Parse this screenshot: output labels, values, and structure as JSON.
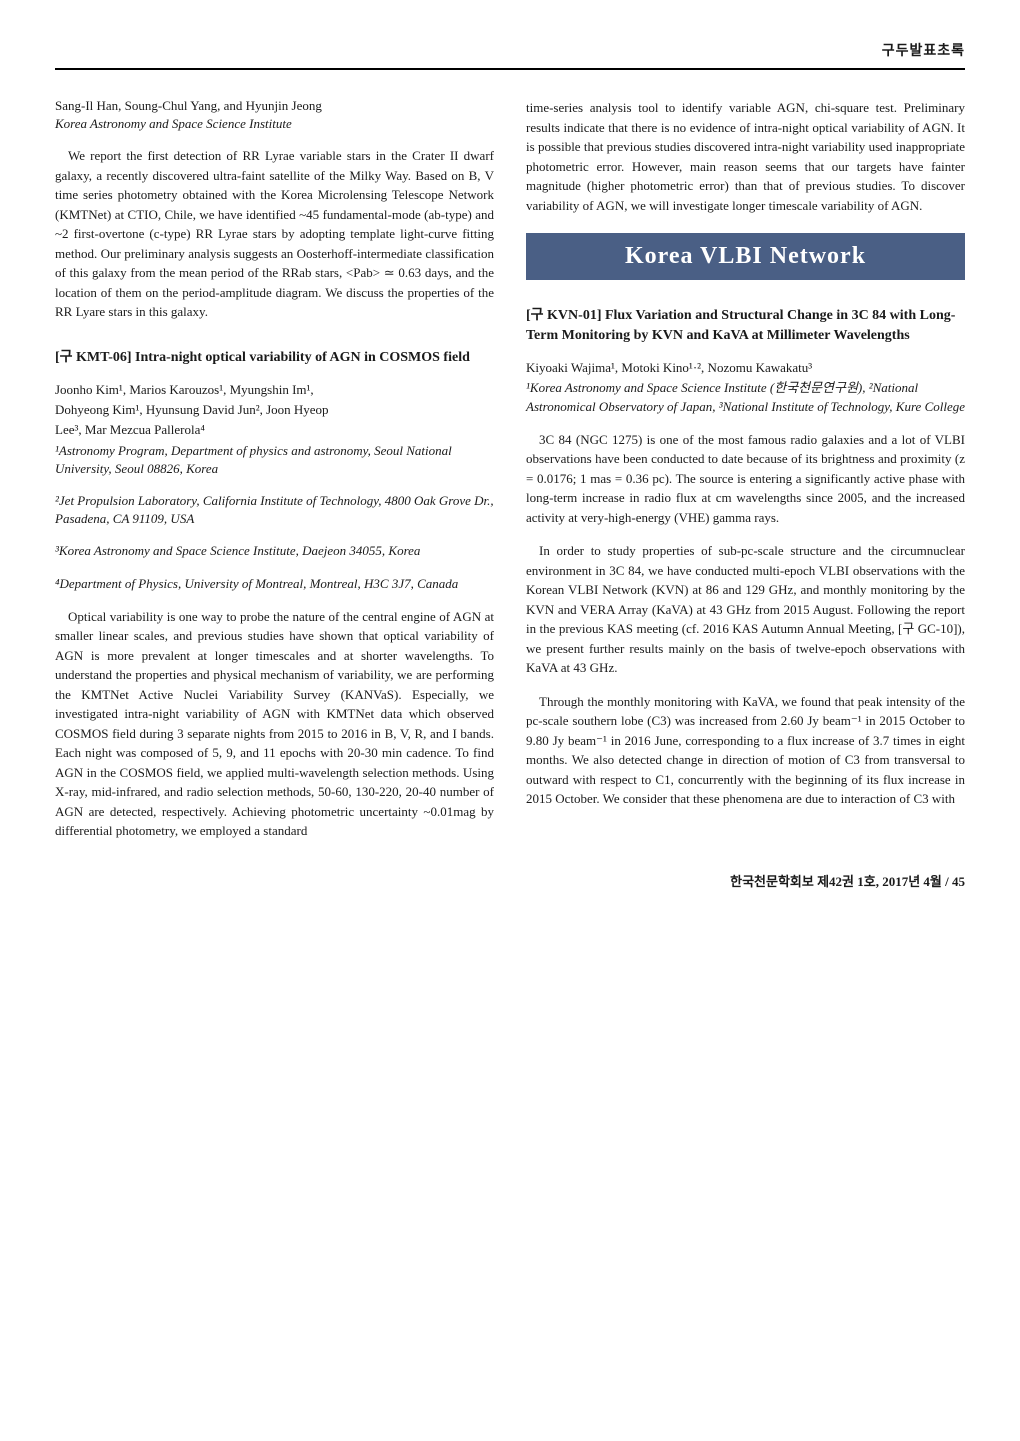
{
  "header": {
    "label": "구두발표초록"
  },
  "left_column": {
    "kmt05": {
      "authors": "Sang-Il Han, Soung-Chul Yang, and Hyunjin Jeong",
      "affiliation": "Korea Astronomy and Space Science Institute",
      "abstract": "We report the first detection of RR Lyrae variable stars in the Crater II dwarf galaxy, a recently discovered ultra-faint satellite of the Milky Way. Based on B, V time series photometry obtained with the Korea Microlensing Telescope Network (KMTNet) at CTIO, Chile, we have identified ~45 fundamental-mode (ab-type) and ~2 first-overtone (c-type) RR Lyrae stars by adopting template light-curve fitting method. Our preliminary analysis suggests an Oosterhoff-intermediate classification of this galaxy from the mean period of the RRab stars, <Pab> ≃ 0.63 days, and the location of them on the period-amplitude diagram. We discuss the properties of the RR Lyare stars in this galaxy."
    },
    "kmt06": {
      "title": "[구 KMT-06] Intra-night optical variability of AGN in COSMOS field",
      "authors_line1": "Joonho Kim¹, Marios Karouzos¹, Myungshin Im¹,",
      "authors_line2": "Dohyeong Kim¹, Hyunsung David Jun², Joon Hyeop",
      "authors_line3": "Lee³, Mar Mezcua Pallerola⁴",
      "affiliation1": "¹Astronomy Program, Department of physics and astronomy, Seoul National University, Seoul 08826, Korea",
      "affiliation2": "²Jet Propulsion Laboratory, California Institute of Technology, 4800 Oak Grove Dr., Pasadena, CA 91109, USA",
      "affiliation3": "³Korea Astronomy and Space Science Institute, Daejeon 34055, Korea",
      "affiliation4": "⁴Department of Physics, University of Montreal, Montreal, H3C 3J7, Canada",
      "abstract": "Optical variability is one way to probe the nature of the central engine of AGN at smaller linear scales, and previous studies have shown that optical variability of AGN is more prevalent at longer timescales and at shorter wavelengths. To understand the properties and physical mechanism of variability, we are performing the KMTNet Active Nuclei Variability Survey (KANVaS). Especially, we investigated intra-night variability of AGN with KMTNet data which observed COSMOS field during 3 separate nights from 2015 to 2016 in B, V, R, and I bands. Each night was composed of 5, 9, and 11 epochs with 20-30 min cadence. To find AGN in the COSMOS field, we applied multi-wavelength selection methods. Using X-ray, mid-infrared, and radio selection methods, 50-60, 130-220, 20-40 number of AGN are detected, respectively. Achieving photometric uncertainty ~0.01mag by differential photometry, we employed a standard"
    }
  },
  "right_column": {
    "kmt06_continued": "time-series analysis tool to identify variable AGN, chi-square test. Preliminary results indicate that there is no evidence of intra-night optical variability of AGN. It is possible that previous studies discovered intra-night variability used inappropriate photometric error. However, main reason seems that our targets have fainter magnitude (higher photometric error) than that of previous studies. To discover variability of AGN, we will investigate longer timescale variability of AGN.",
    "banner_text": "Korea VLBI Network",
    "kvn01": {
      "title": "[구 KVN-01] Flux Variation and Structural Change in 3C 84 with Long-Term Monitoring by KVN and KaVA at Millimeter Wavelengths",
      "authors": "Kiyoaki Wajima¹, Motoki Kino¹·², Nozomu Kawakatu³",
      "affiliation": "¹Korea Astronomy and Space Science Institute (한국천문연구원), ²National Astronomical Observatory of Japan, ³National Institute of Technology, Kure College",
      "para1": "3C 84 (NGC 1275) is one of the most famous radio galaxies and a lot of VLBI observations have been conducted to date because of its brightness and proximity (z = 0.0176; 1 mas = 0.36 pc). The source is entering a significantly active phase with long-term increase in radio flux at cm wavelengths since 2005, and the increased activity at very-high-energy (VHE) gamma rays.",
      "para2": "In order to study properties of sub-pc-scale structure and the circumnuclear environment in 3C 84, we have conducted multi-epoch VLBI observations with the Korean VLBI Network (KVN) at 86 and 129 GHz, and monthly monitoring by the KVN and VERA Array (KaVA) at 43 GHz from 2015 August. Following the report in the previous KAS meeting (cf. 2016 KAS Autumn Annual Meeting, [구 GC-10]), we present further results mainly on the basis of twelve-epoch observations with KaVA at 43 GHz.",
      "para3": "Through the monthly monitoring with KaVA, we found that peak intensity of the pc-scale southern lobe (C3) was increased from 2.60 Jy beam⁻¹ in 2015 October to 9.80 Jy beam⁻¹ in 2016 June, corresponding to a flux increase of 3.7 times in eight months. We also detected change in direction of motion of C3 from transversal to outward with respect to C1, concurrently with the beginning of its flux increase in 2015 October. We consider that these phenomena are due to interaction of C3 with"
    }
  },
  "footer": {
    "text": "한국천문학회보 제42권 1호, 2017년 4월 / 45"
  }
}
